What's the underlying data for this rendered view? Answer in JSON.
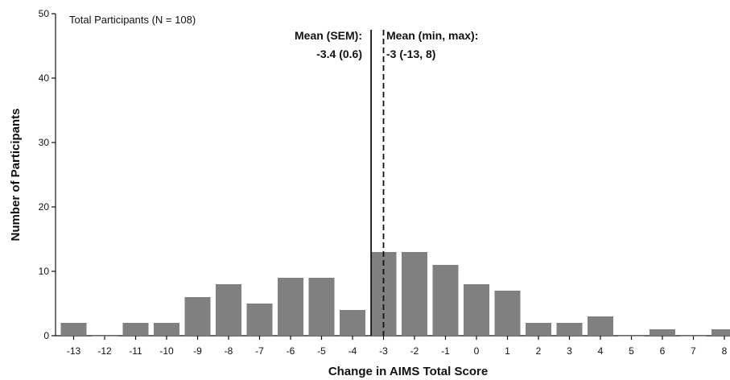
{
  "chart_data": {
    "type": "bar",
    "title": "",
    "xlabel": "Change in AIMS Total Score",
    "ylabel": "Number of Participants",
    "ylim": [
      0,
      50
    ],
    "yticks": [
      0,
      10,
      20,
      30,
      40,
      50
    ],
    "categories": [
      "-13",
      "-12",
      "-11",
      "-10",
      "-9",
      "-8",
      "-7",
      "-6",
      "-5",
      "-4",
      "-3",
      "-2",
      "-1",
      "0",
      "1",
      "2",
      "3",
      "4",
      "5",
      "6",
      "7",
      "8"
    ],
    "values": [
      2,
      0,
      2,
      2,
      6,
      8,
      5,
      9,
      9,
      4,
      13,
      13,
      11,
      8,
      7,
      2,
      2,
      3,
      0,
      1,
      0,
      1
    ],
    "bar_color": "#808080",
    "grid": false,
    "legend": "none",
    "annotations": {
      "participants": "Total Participants (N = 108)",
      "mean_sem_label": "Mean (SEM):",
      "mean_sem_value": "-3.4 (0.6)",
      "mean_minmax_label": "Mean (min, max):",
      "mean_minmax_value": "-3 (-13, 8)"
    },
    "reference_lines": [
      {
        "x": -3.4,
        "style": "solid"
      },
      {
        "x": -3,
        "style": "dashed"
      }
    ]
  }
}
